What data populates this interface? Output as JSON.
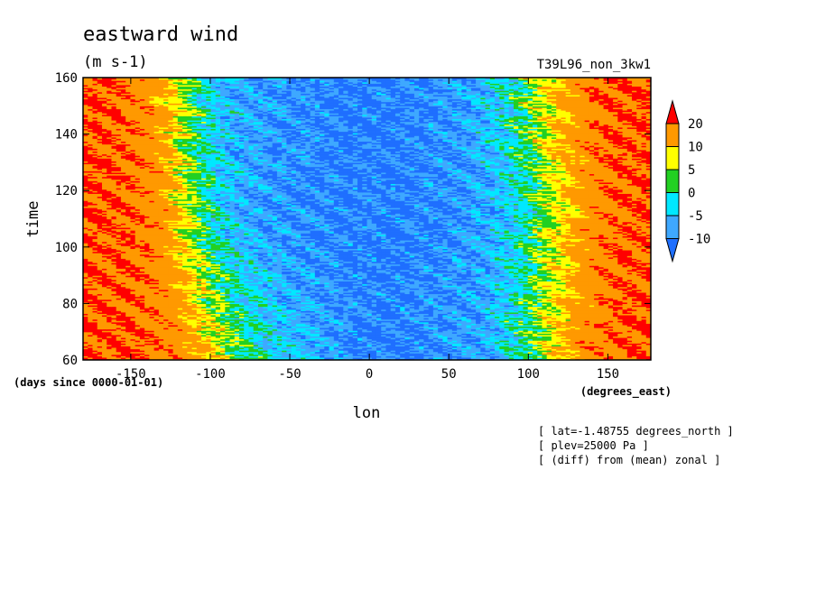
{
  "chart_data": {
    "type": "heatmap",
    "title": "eastward wind",
    "subtitle": "(m s-1)",
    "run_label": "T39L96_non_3kw1",
    "xlabel": "lon",
    "ylabel": "time",
    "x_units": "(degrees_east)",
    "y_units": "(days since 0000-01-01)",
    "xlim": [
      -180,
      177
    ],
    "ylim": [
      60,
      160
    ],
    "x_ticks": [
      -150,
      -100,
      -50,
      0,
      50,
      100,
      150
    ],
    "x_tick_labels": [
      "-150",
      "-100",
      "-50",
      "0",
      "50",
      "100",
      "150"
    ],
    "y_ticks": [
      60,
      80,
      100,
      120,
      140,
      160
    ],
    "y_tick_labels": [
      "60",
      "80",
      "100",
      "120",
      "140",
      "160"
    ],
    "colorbar": {
      "levels": [
        -10,
        -5,
        0,
        5,
        10,
        20
      ],
      "labels": [
        "-10",
        "-5",
        "0",
        "5",
        "10",
        "20"
      ],
      "colors": [
        "#1f6fff",
        "#3ea8ff",
        "#00e8ff",
        "#22d022",
        "#ffff00",
        "#ff9900",
        "#ff0000"
      ]
    },
    "notes": [
      "[ lat=-1.48755 degrees_north ]",
      "[ plev=25000 Pa ]",
      "[ (diff) from (mean) zonal ]"
    ],
    "field_profile": {
      "lon": [
        -180,
        -160,
        -140,
        -125,
        -115,
        -105,
        -95,
        -80,
        -60,
        -40,
        -20,
        0,
        20,
        40,
        60,
        75,
        85,
        95,
        105,
        115,
        125,
        135,
        145,
        160,
        177
      ],
      "value_t60": [
        20,
        20,
        20,
        18,
        15,
        12,
        8,
        2,
        -3,
        -6,
        -9,
        -11,
        -11,
        -10,
        -9,
        -7,
        -4,
        0,
        4,
        8,
        12,
        15,
        18,
        20,
        20
      ],
      "value_t110": [
        20,
        20,
        18,
        12,
        6,
        1,
        -3,
        -7,
        -9,
        -10,
        -11,
        -11,
        -11,
        -10,
        -9,
        -7,
        -5,
        -2,
        2,
        6,
        10,
        14,
        17,
        20,
        20
      ],
      "value_t160": [
        20,
        20,
        16,
        10,
        3,
        -2,
        -5,
        -8,
        -9,
        -10,
        -11,
        -11,
        -11,
        -10,
        -8,
        -5,
        -2,
        2,
        6,
        10,
        14,
        17,
        20,
        20,
        20
      ]
    }
  }
}
